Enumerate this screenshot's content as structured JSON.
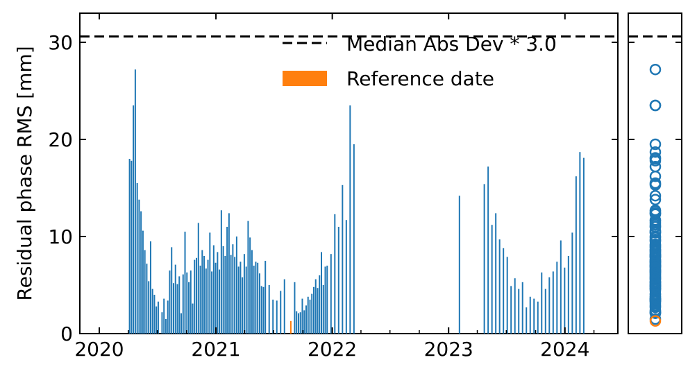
{
  "chart_data": [
    {
      "type": "bar",
      "xlabel": "",
      "ylabel": "Residual phase RMS [mm]",
      "x_axis": "date",
      "xlim": [
        "2019-11-01",
        "2024-06-15"
      ],
      "ylim": [
        0,
        33
      ],
      "x_ticks": [
        "2020",
        "2021",
        "2022",
        "2023",
        "2024"
      ],
      "y_ticks": [
        "0",
        "10",
        "20",
        "30"
      ],
      "grid": false,
      "legend": {
        "placement": "top-right",
        "entries": [
          {
            "label": "Median Abs Dev * 3.0",
            "style": "dashed-line",
            "color": "#000000"
          },
          {
            "label": "Reference date",
            "style": "patch",
            "color": "#ff7f0e"
          }
        ]
      },
      "threshold": {
        "label": "Median Abs Dev * 3.0",
        "value": 30.6,
        "color": "#000000"
      },
      "colors": {
        "bars": "#1f77b4",
        "reference": "#ff7f0e"
      },
      "reference_date": "2021-08-24",
      "series": [
        {
          "dates": [
            "2020-04-05",
            "2020-04-11",
            "2020-04-17",
            "2020-04-23",
            "2020-04-29",
            "2020-05-05",
            "2020-05-11",
            "2020-05-17",
            "2020-05-23",
            "2020-05-29",
            "2020-06-04",
            "2020-06-10",
            "2020-06-16",
            "2020-06-22",
            "2020-06-28",
            "2020-07-04",
            "2020-07-16",
            "2020-07-22",
            "2020-07-28",
            "2020-08-03",
            "2020-08-09",
            "2020-08-15",
            "2020-08-21",
            "2020-08-27",
            "2020-09-02",
            "2020-09-08",
            "2020-09-14",
            "2020-09-20",
            "2020-09-26",
            "2020-10-02",
            "2020-10-08",
            "2020-10-14",
            "2020-10-20",
            "2020-10-26",
            "2020-11-01",
            "2020-11-07",
            "2020-11-13",
            "2020-11-19",
            "2020-11-25",
            "2020-12-01",
            "2020-12-07",
            "2020-12-13",
            "2020-12-19",
            "2020-12-25",
            "2020-12-31",
            "2021-01-06",
            "2021-01-12",
            "2021-01-18",
            "2021-01-24",
            "2021-01-30",
            "2021-02-05",
            "2021-02-11",
            "2021-02-17",
            "2021-02-23",
            "2021-03-01",
            "2021-03-07",
            "2021-03-13",
            "2021-03-19",
            "2021-03-25",
            "2021-03-31",
            "2021-04-06",
            "2021-04-12",
            "2021-04-18",
            "2021-04-24",
            "2021-04-30",
            "2021-05-06",
            "2021-05-12",
            "2021-05-18",
            "2021-05-24",
            "2021-05-30",
            "2021-06-05",
            "2021-06-17",
            "2021-06-29",
            "2021-07-11",
            "2021-07-23",
            "2021-08-04",
            "2021-08-24",
            "2021-09-05",
            "2021-09-11",
            "2021-09-17",
            "2021-09-23",
            "2021-09-29",
            "2021-10-05",
            "2021-10-11",
            "2021-10-17",
            "2021-10-23",
            "2021-10-29",
            "2021-11-04",
            "2021-11-10",
            "2021-11-16",
            "2021-11-22",
            "2021-11-28",
            "2021-12-04",
            "2021-12-10",
            "2021-12-16",
            "2021-12-28",
            "2022-01-09",
            "2022-01-21",
            "2022-02-02",
            "2022-02-14",
            "2022-02-26",
            "2022-03-10",
            "2023-02-04",
            "2023-04-23",
            "2023-05-05",
            "2023-05-17",
            "2023-05-29",
            "2023-06-10",
            "2023-06-22",
            "2023-07-04",
            "2023-07-16",
            "2023-07-28",
            "2023-08-09",
            "2023-08-21",
            "2023-09-02",
            "2023-09-14",
            "2023-09-26",
            "2023-10-08",
            "2023-10-20",
            "2023-11-01",
            "2023-11-13",
            "2023-11-25",
            "2023-12-07",
            "2023-12-19",
            "2023-12-31",
            "2024-01-12",
            "2024-01-24",
            "2024-02-05",
            "2024-02-17",
            "2024-02-29",
            "2024-03-12",
            "2024-03-24"
          ],
          "values": [
            18.0,
            17.8,
            23.5,
            27.2,
            15.5,
            13.8,
            12.6,
            10.6,
            8.6,
            7.2,
            5.4,
            9.5,
            4.6,
            4.0,
            2.8,
            3.3,
            2.2,
            3.6,
            1.5,
            3.4,
            6.5,
            8.9,
            5.2,
            7.1,
            5.1,
            5.9,
            2.1,
            6.1,
            10.5,
            6.3,
            5.3,
            6.5,
            3.1,
            7.6,
            7.8,
            11.4,
            7.0,
            8.6,
            8.0,
            6.7,
            7.6,
            10.4,
            6.4,
            9.1,
            7.3,
            8.4,
            6.6,
            12.7,
            9.0,
            8.0,
            11.0,
            12.4,
            8.1,
            9.2,
            7.9,
            10.0,
            6.9,
            7.4,
            5.8,
            8.2,
            6.9,
            11.6,
            9.9,
            8.6,
            7.0,
            7.4,
            7.3,
            6.2,
            4.9,
            4.8,
            7.5,
            5.0,
            3.5,
            3.4,
            4.4,
            5.6,
            1.3,
            5.3,
            2.3,
            2.1,
            2.2,
            3.6,
            2.4,
            2.9,
            3.8,
            3.5,
            4.1,
            4.8,
            5.6,
            4.7,
            6.0,
            8.4,
            5.0,
            6.9,
            7.0,
            8.2,
            12.3,
            11.0,
            15.3,
            11.7,
            23.5,
            19.5,
            14.2,
            15.4,
            17.2,
            11.2,
            12.4,
            9.7,
            8.8,
            7.9,
            4.9,
            5.7,
            4.6,
            5.3,
            2.7,
            3.8,
            3.6,
            3.3,
            6.3,
            4.6,
            5.8,
            6.4,
            7.4,
            9.6,
            6.8,
            8.0,
            10.4,
            16.2,
            18.7,
            18.1,
            0,
            0
          ]
        }
      ]
    },
    {
      "type": "scatter",
      "description_ylim": [
        0,
        33
      ],
      "marker": "open-circle",
      "colors": {
        "points": "#1f77b4",
        "reference": "#ff7f0e"
      },
      "threshold": {
        "value": 30.6,
        "color": "#000000"
      },
      "reference_value": 1.3
    }
  ]
}
